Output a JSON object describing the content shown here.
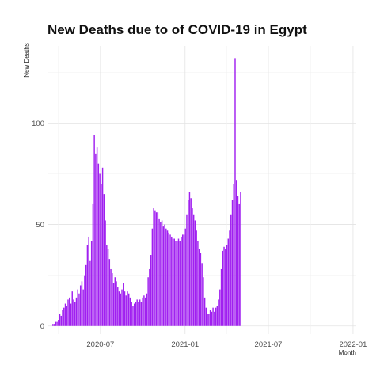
{
  "chart_data": {
    "type": "bar",
    "title": "New Deaths due to of COVID-19 in Egypt",
    "xlabel": "Month",
    "ylabel": "New Deaths",
    "x_range": [
      "2020-03-08",
      "2022-01-08"
    ],
    "ylim": [
      -4,
      138
    ],
    "y_ticks": [
      0,
      50,
      100
    ],
    "x_ticks": [
      {
        "date": "2020-07-01",
        "label": "2020-07"
      },
      {
        "date": "2021-01-01",
        "label": "2021-01"
      },
      {
        "date": "2021-07-01",
        "label": "2021-07"
      },
      {
        "date": "2022-01-01",
        "label": "2022-01"
      }
    ],
    "grid": true,
    "bar_color": "#a020f0",
    "series": [
      {
        "start_date": "2020-03-20",
        "interval_days": 3,
        "values": [
          1,
          1,
          2,
          2,
          3,
          6,
          5,
          8,
          9,
          11,
          10,
          13,
          14,
          11,
          17,
          13,
          12,
          14,
          18,
          16,
          20,
          22,
          18,
          25,
          30,
          40,
          44,
          32,
          42,
          60,
          94,
          85,
          88,
          80,
          75,
          70,
          78,
          65,
          52,
          40,
          38,
          33,
          28,
          26,
          21,
          24,
          22,
          19,
          17,
          16,
          18,
          21,
          17,
          15,
          17,
          16,
          14,
          12,
          10,
          11,
          12,
          13,
          12,
          13,
          12,
          14,
          15,
          14,
          16,
          24,
          28,
          35,
          48,
          58,
          57,
          56,
          56,
          53,
          51,
          52,
          49,
          50,
          48,
          47,
          46,
          45,
          44,
          43,
          43,
          42,
          42,
          43,
          42,
          44,
          45,
          45,
          48,
          55,
          62,
          66,
          63,
          58,
          55,
          52,
          47,
          42,
          38,
          36,
          31,
          24,
          14,
          9,
          6,
          6,
          8,
          7,
          9,
          7,
          9,
          10,
          13,
          18,
          28,
          37,
          39,
          38,
          40,
          43,
          47,
          55,
          62,
          70,
          132,
          72,
          64,
          60,
          66
        ]
      }
    ]
  }
}
